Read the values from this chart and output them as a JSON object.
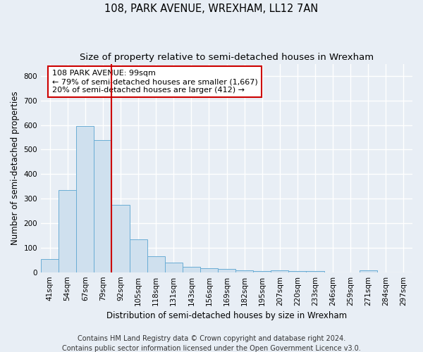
{
  "title": "108, PARK AVENUE, WREXHAM, LL12 7AN",
  "subtitle": "Size of property relative to semi-detached houses in Wrexham",
  "xlabel": "Distribution of semi-detached houses by size in Wrexham",
  "ylabel": "Number of semi-detached properties",
  "categories": [
    "41sqm",
    "54sqm",
    "67sqm",
    "79sqm",
    "92sqm",
    "105sqm",
    "118sqm",
    "131sqm",
    "143sqm",
    "156sqm",
    "169sqm",
    "182sqm",
    "195sqm",
    "207sqm",
    "220sqm",
    "233sqm",
    "246sqm",
    "259sqm",
    "271sqm",
    "284sqm",
    "297sqm"
  ],
  "values": [
    55,
    335,
    595,
    540,
    275,
    135,
    65,
    40,
    22,
    17,
    12,
    7,
    5,
    7,
    5,
    6,
    0,
    0,
    9,
    0,
    0
  ],
  "bar_color": "#cfe0ee",
  "bar_edge_color": "#6aadd5",
  "annotation_text_line1": "108 PARK AVENUE: 99sqm",
  "annotation_text_line2": "← 79% of semi-detached houses are smaller (1,667)",
  "annotation_text_line3": "20% of semi-detached houses are larger (412) →",
  "vline_color": "#cc0000",
  "annotation_box_color": "#ffffff",
  "annotation_box_edge": "#cc0000",
  "ylim": [
    0,
    850
  ],
  "yticks": [
    0,
    100,
    200,
    300,
    400,
    500,
    600,
    700,
    800
  ],
  "footer_line1": "Contains HM Land Registry data © Crown copyright and database right 2024.",
  "footer_line2": "Contains public sector information licensed under the Open Government Licence v3.0.",
  "bg_color": "#e8eef5",
  "plot_bg_color": "#e8eef5",
  "grid_color": "#ffffff",
  "title_fontsize": 10.5,
  "subtitle_fontsize": 9.5,
  "axis_label_fontsize": 8.5,
  "tick_fontsize": 7.5,
  "footer_fontsize": 7,
  "annotation_fontsize": 8
}
